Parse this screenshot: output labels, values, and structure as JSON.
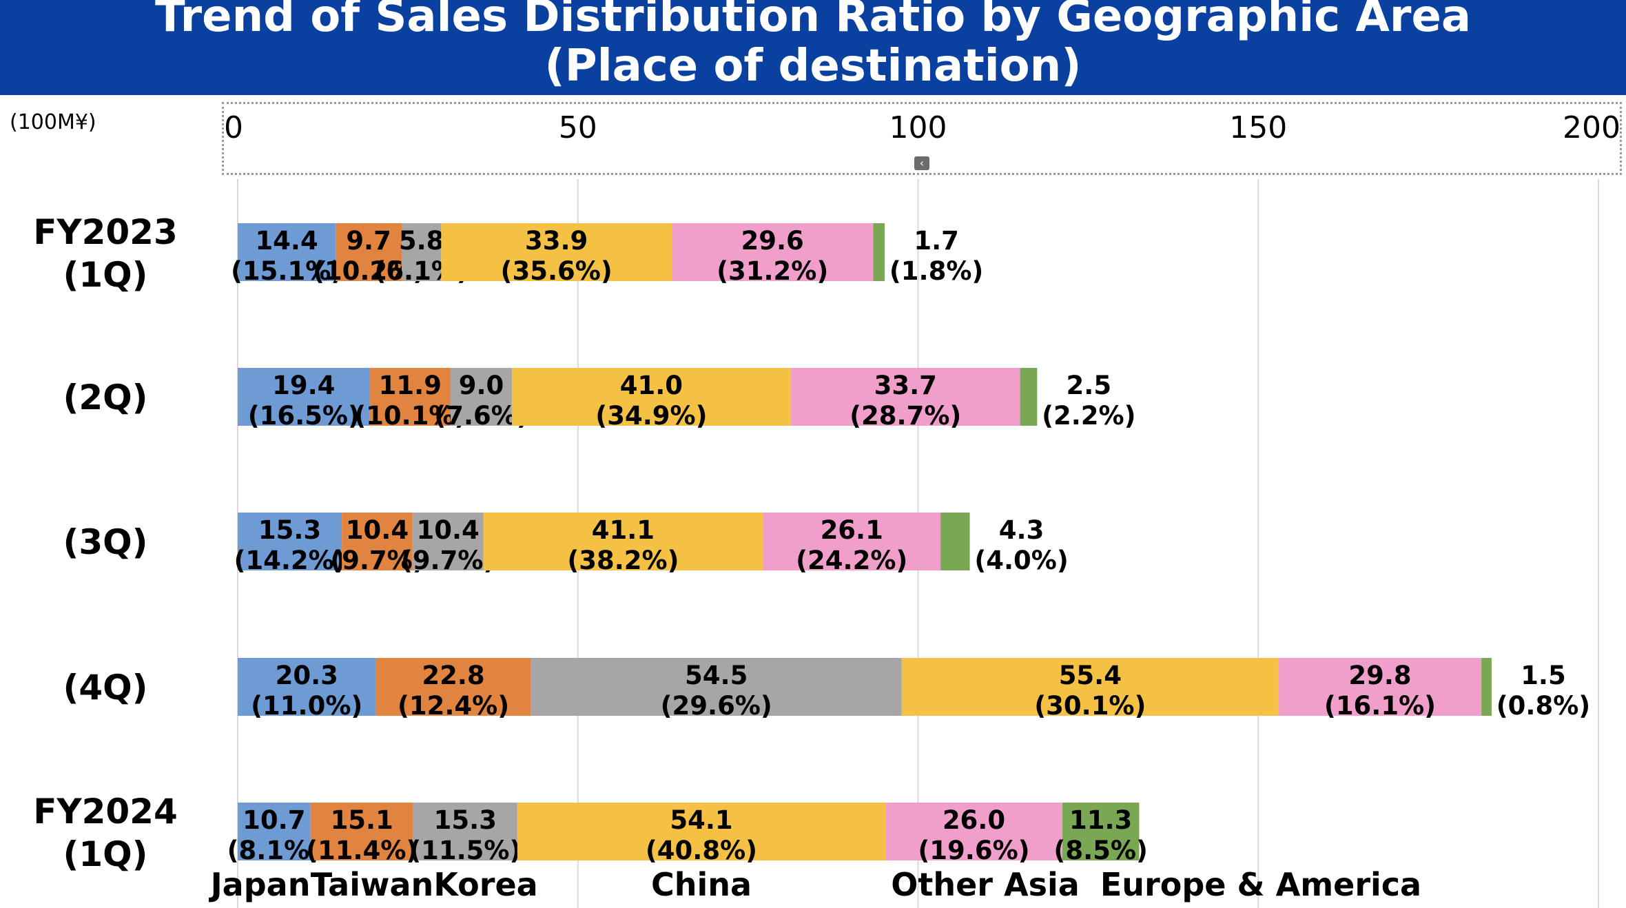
{
  "header": {
    "title_line1": "Trend of Sales Distribution Ratio by Geographic Area",
    "title_line2": "(Place of destination)"
  },
  "unit_label": "(100M¥)",
  "scroll_icon": "chevron-left-icon",
  "colors": {
    "header_bg": "#0a40a0",
    "Japan": "#6e9bd3",
    "Taiwan": "#e18440",
    "Korea": "#a6a6a6",
    "China": "#f4c144",
    "Other Asia": "#f09fca",
    "Europe & America": "#7aa754",
    "grid": "#d9d9d9"
  },
  "chart_data": {
    "type": "bar",
    "orientation": "horizontal",
    "stacked": true,
    "title": "Trend of Sales Distribution Ratio by Geographic Area (Place of destination)",
    "xlabel": "(100M¥)",
    "xlim": [
      0,
      200
    ],
    "xticks": [
      0,
      50,
      100,
      150,
      200
    ],
    "grid": true,
    "categories": [
      [
        "FY2023",
        "(1Q)"
      ],
      [
        "(2Q)"
      ],
      [
        "(3Q)"
      ],
      [
        "(4Q)"
      ],
      [
        "FY2024",
        "(1Q)"
      ]
    ],
    "series": [
      {
        "name": "Japan",
        "values": [
          14.4,
          19.4,
          15.3,
          20.3,
          10.7
        ],
        "percent": [
          "15.1",
          "16.5",
          "14.2",
          "11.0",
          "8.1"
        ]
      },
      {
        "name": "Taiwan",
        "values": [
          9.7,
          11.9,
          10.4,
          22.8,
          15.1
        ],
        "percent": [
          "10.2",
          "10.1",
          "9.7",
          "12.4",
          "11.4"
        ]
      },
      {
        "name": "Korea",
        "values": [
          5.8,
          9.0,
          10.4,
          54.5,
          15.3
        ],
        "percent": [
          "6.1",
          "7.6",
          "9.7",
          "29.6",
          "11.5"
        ]
      },
      {
        "name": "China",
        "values": [
          33.9,
          41.0,
          41.1,
          55.4,
          54.1
        ],
        "percent": [
          "35.6",
          "34.9",
          "38.2",
          "30.1",
          "40.8"
        ]
      },
      {
        "name": "Other Asia",
        "values": [
          29.6,
          33.7,
          26.1,
          29.8,
          26.0
        ],
        "percent": [
          "31.2",
          "28.7",
          "24.2",
          "16.1",
          "19.6"
        ]
      },
      {
        "name": "Europe & America",
        "values": [
          1.7,
          2.5,
          4.3,
          1.5,
          11.3
        ],
        "percent": [
          "1.8",
          "2.2",
          "4.0",
          "0.8",
          "8.5"
        ]
      }
    ],
    "legend": [
      "Japan",
      "Taiwan",
      "Korea",
      "China",
      "Other Asia",
      "Europe & America"
    ],
    "legend_position": "bottom"
  }
}
